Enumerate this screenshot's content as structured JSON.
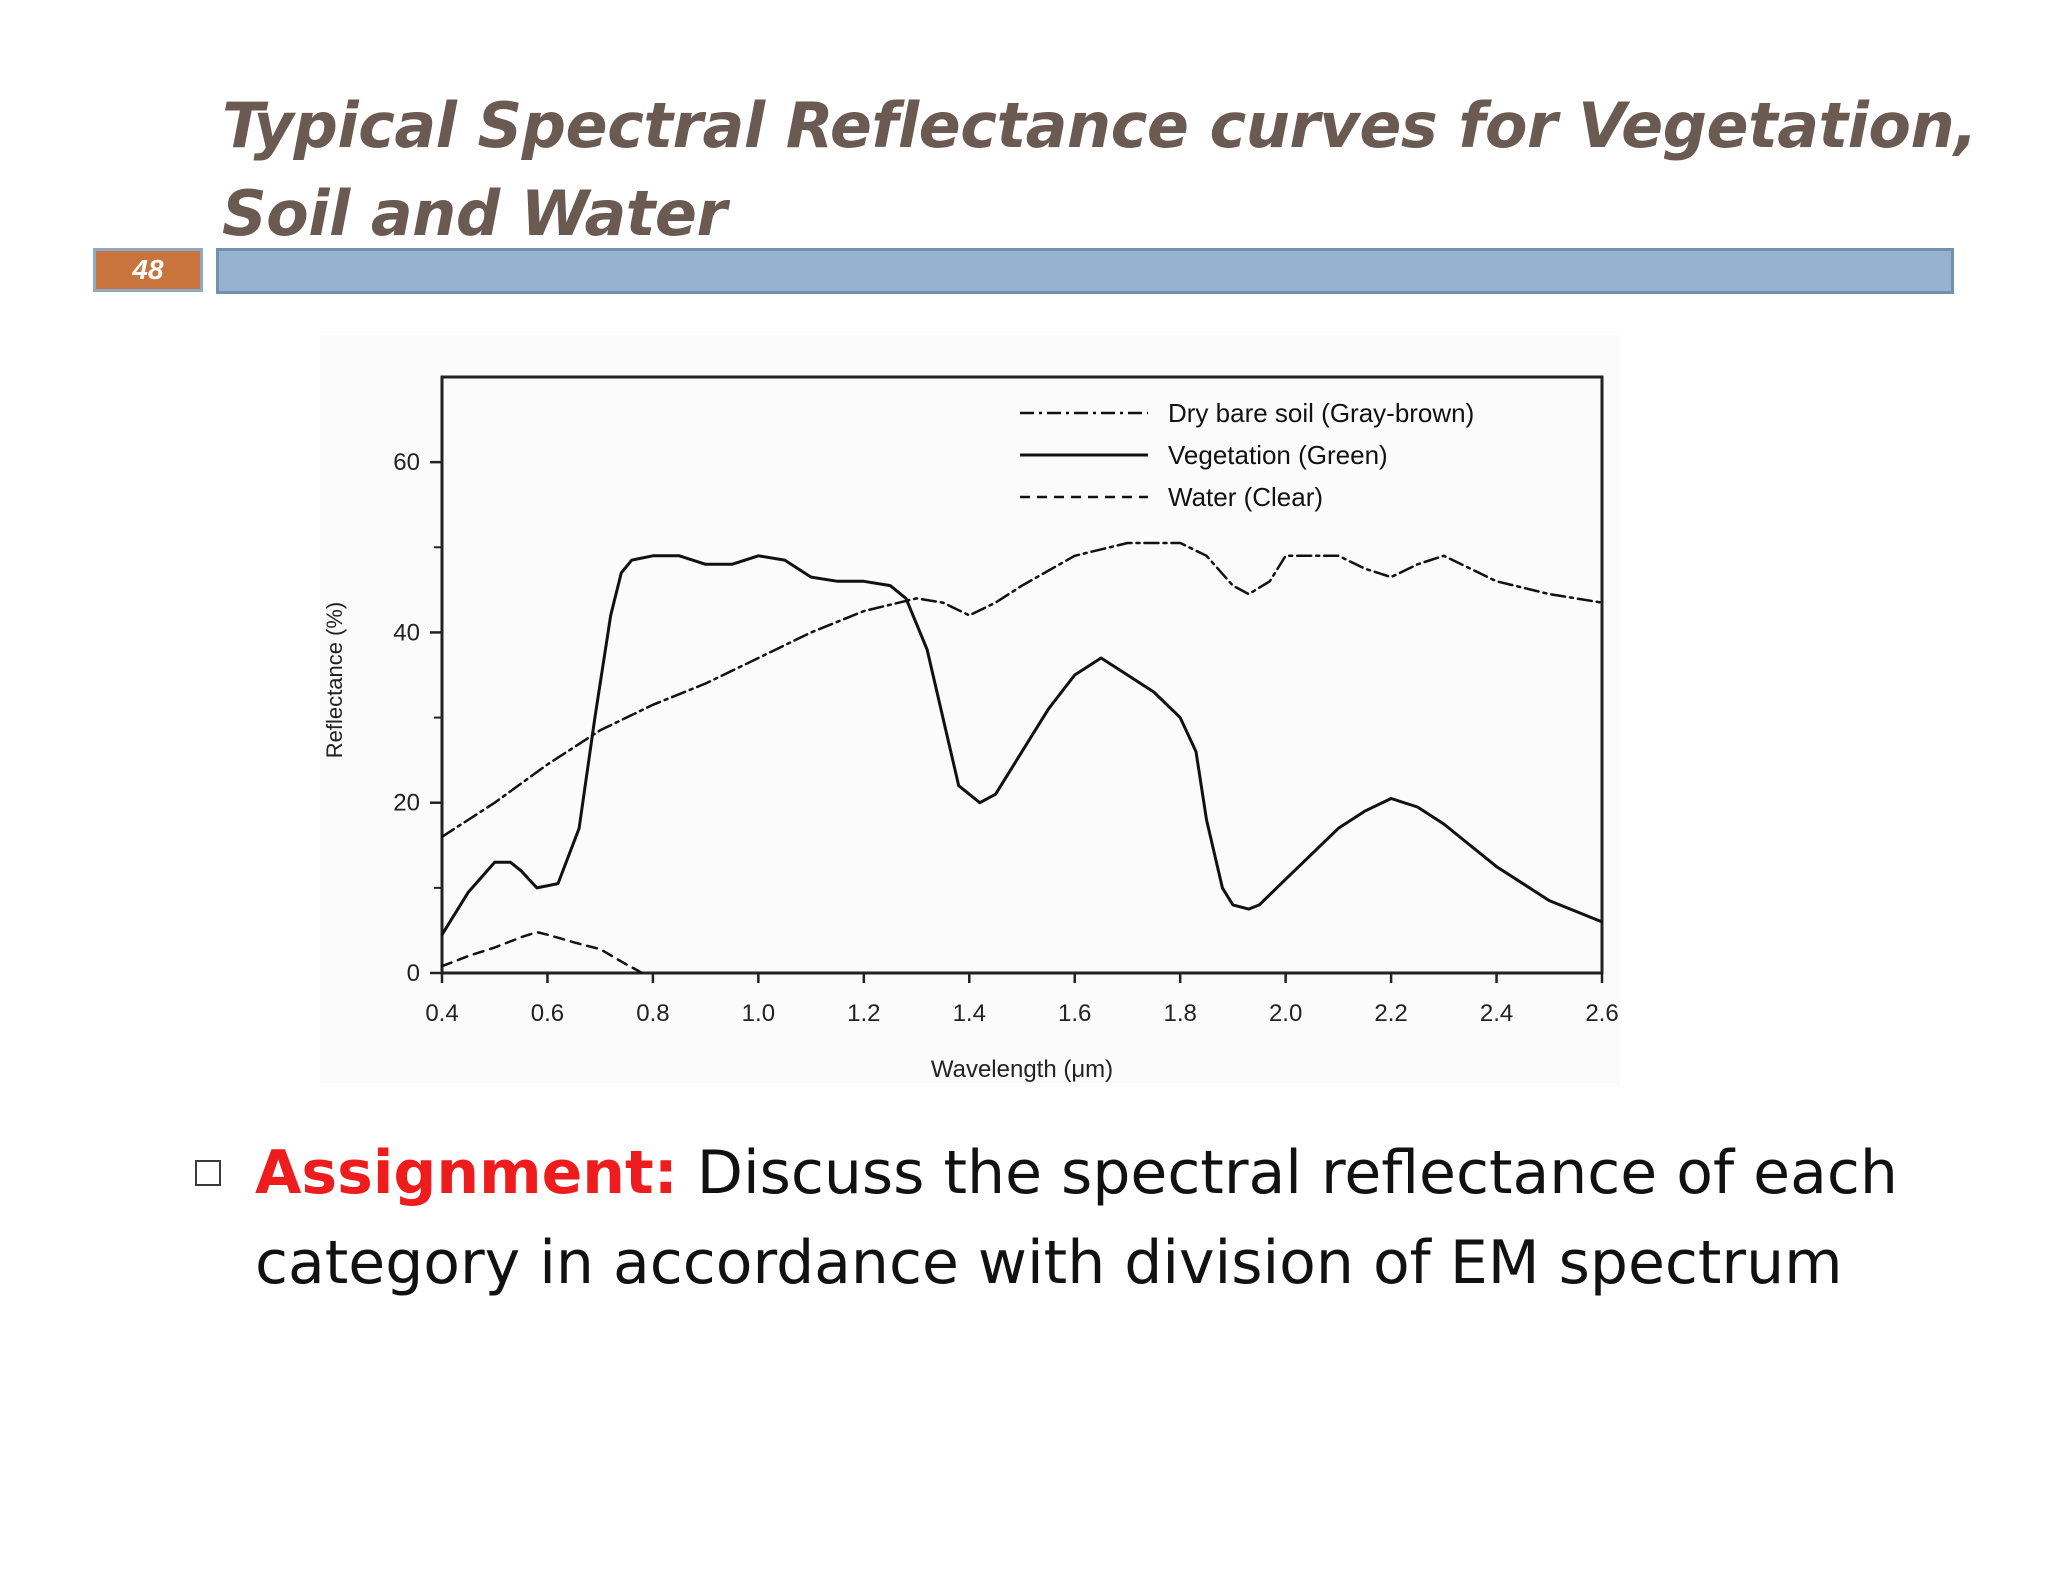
{
  "slide": {
    "title": "Typical Spectral Reflectance curves for Vegetation, Soil and Water",
    "number": "48"
  },
  "assignment": {
    "label": "Assignment:",
    "text": " Discuss the spectral reflectance of each category in accordance with division of EM spectrum"
  },
  "colors": {
    "title": "#6b5a52",
    "accent_bar": "#95b3d0",
    "number_box": "#c8743c",
    "assignment_label": "#ee1c1c"
  },
  "chart_data": {
    "type": "line",
    "title": "",
    "xlabel": "Wavelength (μm)",
    "ylabel": "Reflectance (%)",
    "xlim": [
      0.4,
      2.6
    ],
    "ylim": [
      0,
      70
    ],
    "xticks": [
      "0.4",
      "0.6",
      "0.8",
      "1.0",
      "1.2",
      "1.4",
      "1.6",
      "1.8",
      "2.0",
      "2.2",
      "2.4",
      "2.6"
    ],
    "yticks": [
      "0",
      "20",
      "40",
      "60"
    ],
    "legend_position": "top-right",
    "grid": false,
    "series": [
      {
        "name": "Dry bare soil (Gray-brown)",
        "style": "dash-dot",
        "x": [
          0.4,
          0.5,
          0.6,
          0.7,
          0.8,
          0.9,
          1.0,
          1.1,
          1.2,
          1.3,
          1.35,
          1.4,
          1.45,
          1.5,
          1.6,
          1.7,
          1.8,
          1.85,
          1.9,
          1.93,
          1.97,
          2.0,
          2.1,
          2.15,
          2.2,
          2.25,
          2.3,
          2.4,
          2.5,
          2.6
        ],
        "y": [
          16,
          20,
          24.5,
          28.5,
          31.5,
          34,
          37,
          40,
          42.5,
          44,
          43.5,
          42,
          43.5,
          45.5,
          49,
          50.5,
          50.5,
          49,
          45.5,
          44.5,
          46,
          49,
          49,
          47.5,
          46.5,
          48,
          49,
          46,
          44.5,
          43.5
        ]
      },
      {
        "name": "Vegetation (Green)",
        "style": "solid",
        "x": [
          0.4,
          0.45,
          0.5,
          0.53,
          0.55,
          0.58,
          0.62,
          0.66,
          0.69,
          0.72,
          0.74,
          0.76,
          0.8,
          0.85,
          0.9,
          0.95,
          1.0,
          1.05,
          1.1,
          1.15,
          1.2,
          1.25,
          1.28,
          1.32,
          1.35,
          1.38,
          1.42,
          1.45,
          1.5,
          1.55,
          1.6,
          1.65,
          1.7,
          1.75,
          1.8,
          1.83,
          1.85,
          1.88,
          1.9,
          1.93,
          1.95,
          2.0,
          2.1,
          2.15,
          2.2,
          2.25,
          2.3,
          2.4,
          2.5,
          2.6
        ],
        "y": [
          4.5,
          9.5,
          13,
          13,
          12,
          10,
          10.5,
          17,
          30,
          42,
          47,
          48.5,
          49,
          49,
          48,
          48,
          49,
          48.5,
          46.5,
          46,
          46,
          45.5,
          44,
          38,
          30,
          22,
          20,
          21,
          26,
          31,
          35,
          37,
          35,
          33,
          30,
          26,
          18,
          10,
          8,
          7.5,
          8,
          11,
          17,
          19,
          20.5,
          19.5,
          17.5,
          12.5,
          8.5,
          6
        ]
      },
      {
        "name": "Water (Clear)",
        "style": "dashed",
        "x": [
          0.4,
          0.45,
          0.5,
          0.55,
          0.58,
          0.6,
          0.65,
          0.7,
          0.75,
          0.78
        ],
        "y": [
          0.8,
          2,
          3,
          4.2,
          4.8,
          4.5,
          3.6,
          2.8,
          1,
          0
        ]
      }
    ]
  }
}
